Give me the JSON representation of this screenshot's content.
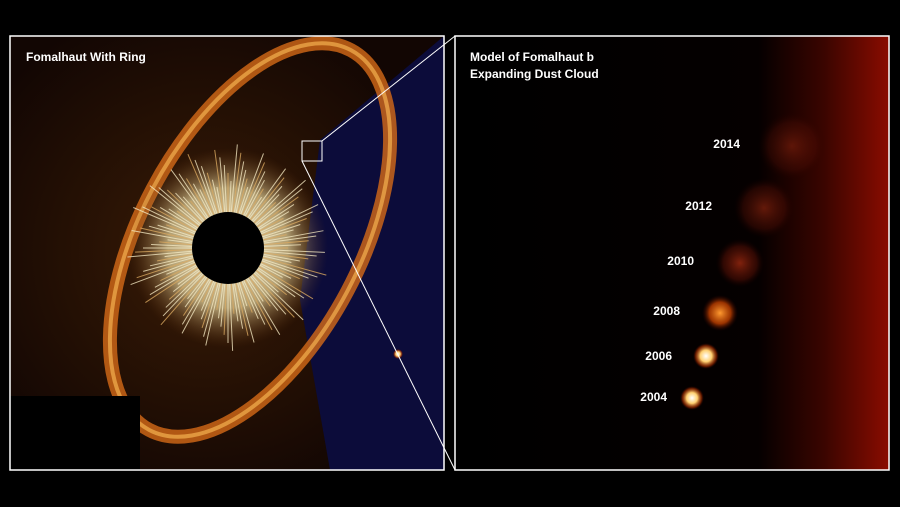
{
  "panels": {
    "left": {
      "title": "Fomalhaut With Ring"
    },
    "right": {
      "title_lines": [
        "Model of Fomalhaut b",
        "Expanding Dust Cloud"
      ],
      "labels": [
        "2014",
        "2012",
        "2010",
        "2008",
        "2006",
        "2004"
      ]
    }
  }
}
